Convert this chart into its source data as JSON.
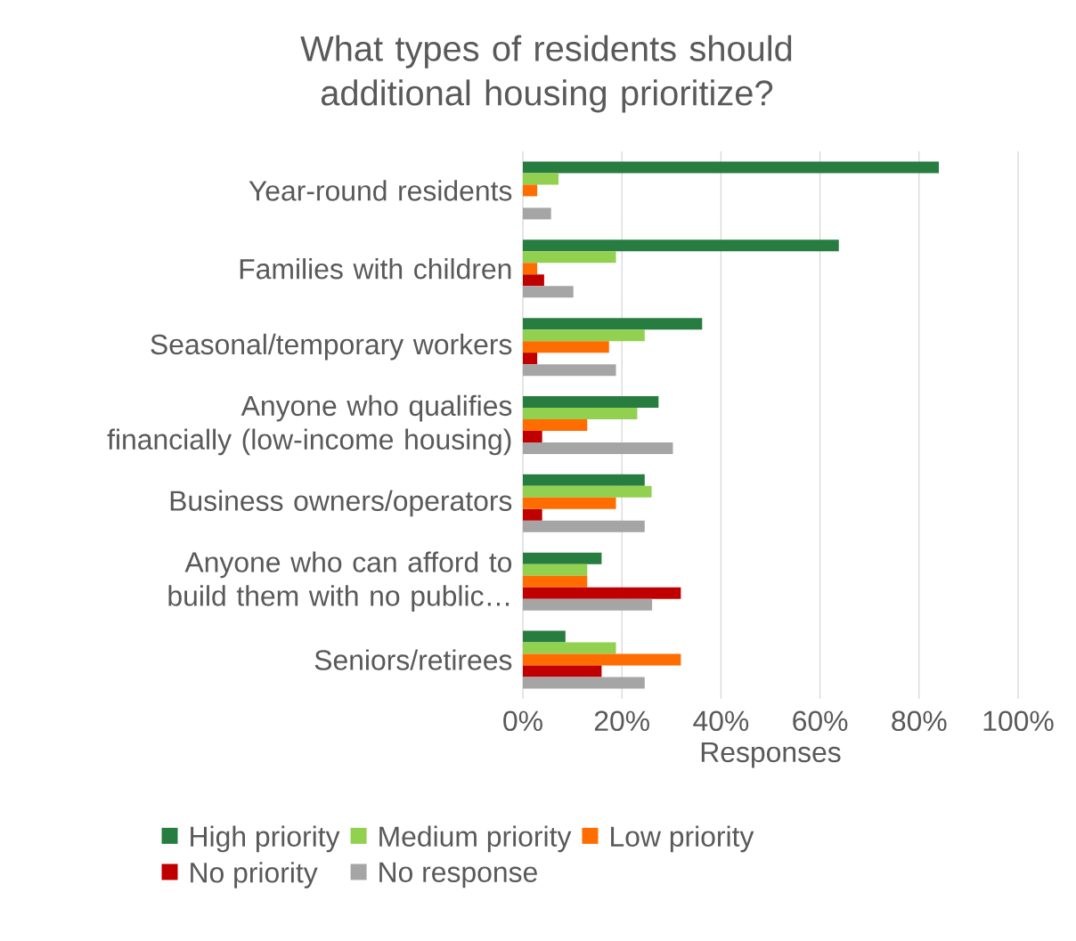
{
  "chart_data": {
    "type": "bar",
    "orientation": "horizontal",
    "title": "What types of residents should additional housing prioritize?",
    "xlabel": "Responses",
    "categories": [
      "Year-round residents",
      "Families with children",
      "Seasonal/temporary workers",
      "Anyone who qualifies financially (low-income housing)",
      "Business owners/operators",
      "Anyone who can afford to build them with no public…",
      "Seniors/retirees"
    ],
    "series": [
      {
        "name": "High priority",
        "color": "#277c40",
        "values": [
          84,
          63.8,
          36.2,
          27.4,
          24.6,
          15.9,
          8.6
        ]
      },
      {
        "name": "Medium priority",
        "color": "#92d050",
        "values": [
          7.2,
          18.8,
          24.6,
          23.1,
          26,
          13,
          18.8
        ]
      },
      {
        "name": "Low priority",
        "color": "#ff6d00",
        "values": [
          2.9,
          2.9,
          17.4,
          13,
          18.8,
          13,
          31.9
        ]
      },
      {
        "name": "No priority",
        "color": "#c00000",
        "values": [
          0,
          4.3,
          2.9,
          3.9,
          3.9,
          31.9,
          15.9
        ]
      },
      {
        "name": "No response",
        "color": "#a5a5a5",
        "values": [
          5.7,
          10.2,
          18.8,
          30.3,
          24.6,
          26.1,
          24.6
        ]
      }
    ],
    "xlim": [
      0,
      100
    ],
    "xticks": [
      {
        "value": 0,
        "label": "0%"
      },
      {
        "value": 20,
        "label": "20%"
      },
      {
        "value": 40,
        "label": "40%"
      },
      {
        "value": 60,
        "label": "60%"
      },
      {
        "value": 80,
        "label": "80%"
      },
      {
        "value": 100,
        "label": "100%"
      }
    ],
    "grid": "x",
    "legend": "bottom"
  }
}
